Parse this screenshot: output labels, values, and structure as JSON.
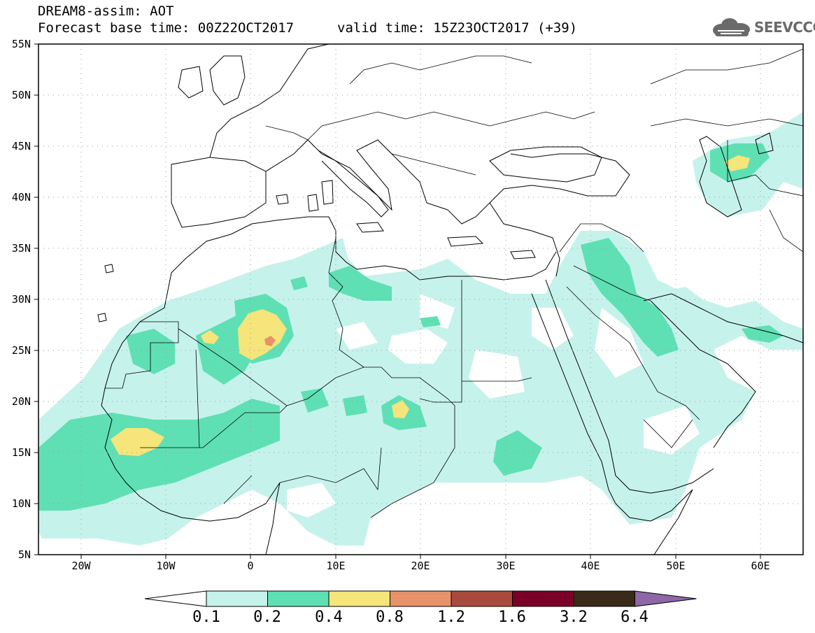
{
  "header": {
    "title_line1": "DREAM8-assim: AOT",
    "title_line2": "Forecast base time: 00Z22OCT2017",
    "title_line3": "valid time: 15Z23OCT2017 (+39)",
    "logo_text": "SEEVCCC"
  },
  "map": {
    "projection": "lat-lon",
    "lon_range": [
      -25,
      65
    ],
    "lat_range": [
      5,
      55
    ],
    "lat_labels": [
      "55N",
      "50N",
      "45N",
      "40N",
      "35N",
      "30N",
      "25N",
      "20N",
      "15N",
      "10N",
      "5N"
    ],
    "lon_labels": [
      "20W",
      "10W",
      "0",
      "10E",
      "20E",
      "30E",
      "40E",
      "50E",
      "60E"
    ],
    "grid": "dotted"
  },
  "colorbar": {
    "levels": [
      "0.1",
      "0.2",
      "0.4",
      "0.8",
      "1.2",
      "1.6",
      "3.2",
      "6.4"
    ],
    "colors": [
      "#ffffff",
      "#c6f2ec",
      "#5ee0b4",
      "#f5e57a",
      "#e8926a",
      "#a84b3c",
      "#7a0028",
      "#3a2a18",
      "#8d67a8"
    ]
  }
}
